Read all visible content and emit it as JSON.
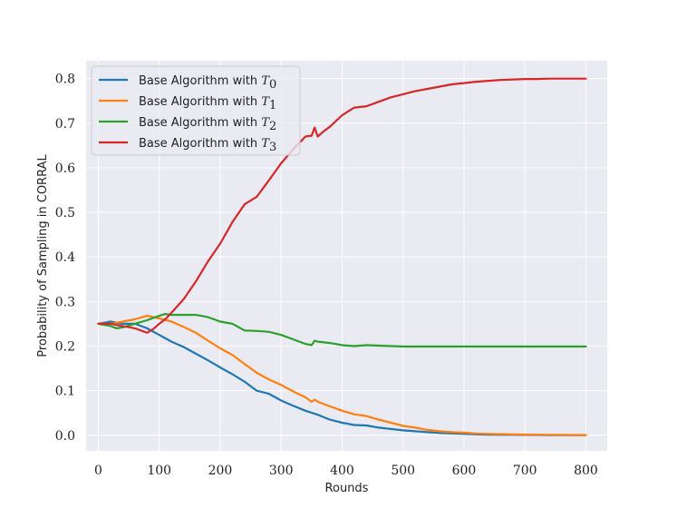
{
  "chart_data": {
    "type": "line",
    "title": "",
    "xlabel": "Rounds",
    "ylabel": "Probability of Sampling in CORRAL",
    "xlim": [
      -20,
      835
    ],
    "ylim": [
      -0.035,
      0.84
    ],
    "xticks": [
      0,
      100,
      200,
      300,
      400,
      500,
      600,
      700,
      800
    ],
    "yticks": [
      0.0,
      0.1,
      0.2,
      0.3,
      0.4,
      0.5,
      0.6,
      0.7,
      0.8
    ],
    "xtick_labels": [
      "0",
      "100",
      "200",
      "300",
      "400",
      "500",
      "600",
      "700",
      "800"
    ],
    "ytick_labels": [
      "0.0",
      "0.1",
      "0.2",
      "0.3",
      "0.4",
      "0.5",
      "0.6",
      "0.7",
      "0.8"
    ],
    "grid": true,
    "legend_position": "top-left",
    "legend_prefix": "Base Algorithm with",
    "series": [
      {
        "name": "T0",
        "symbol": "T",
        "subscript": "0",
        "color": "#1f77b4",
        "x": [
          0,
          20,
          40,
          60,
          80,
          100,
          120,
          140,
          160,
          180,
          200,
          220,
          240,
          260,
          280,
          300,
          320,
          340,
          360,
          380,
          400,
          420,
          440,
          460,
          480,
          500,
          520,
          540,
          560,
          580,
          600,
          620,
          640,
          660,
          680,
          700,
          720,
          740,
          760,
          780,
          800
        ],
        "y": [
          0.25,
          0.255,
          0.25,
          0.25,
          0.24,
          0.225,
          0.21,
          0.198,
          0.183,
          0.168,
          0.152,
          0.137,
          0.12,
          0.1,
          0.093,
          0.078,
          0.066,
          0.055,
          0.046,
          0.035,
          0.028,
          0.023,
          0.022,
          0.017,
          0.014,
          0.011,
          0.009,
          0.007,
          0.005,
          0.004,
          0.003,
          0.002,
          0.0015,
          0.001,
          0.001,
          0.0008,
          0.0006,
          0.0005,
          0.0004,
          0.0003,
          0.0002
        ]
      },
      {
        "name": "T1",
        "symbol": "T",
        "subscript": "1",
        "color": "#ff7f0e",
        "x": [
          0,
          20,
          40,
          60,
          80,
          100,
          120,
          140,
          160,
          180,
          200,
          220,
          240,
          260,
          280,
          300,
          320,
          340,
          350,
          355,
          360,
          380,
          400,
          420,
          440,
          460,
          480,
          500,
          520,
          540,
          560,
          580,
          600,
          620,
          640,
          660,
          680,
          700,
          720,
          740,
          760,
          780,
          800
        ],
        "y": [
          0.25,
          0.25,
          0.255,
          0.26,
          0.268,
          0.262,
          0.255,
          0.243,
          0.23,
          0.212,
          0.195,
          0.18,
          0.16,
          0.14,
          0.125,
          0.113,
          0.098,
          0.085,
          0.075,
          0.08,
          0.075,
          0.065,
          0.055,
          0.047,
          0.043,
          0.035,
          0.028,
          0.021,
          0.017,
          0.012,
          0.009,
          0.007,
          0.006,
          0.004,
          0.003,
          0.0025,
          0.002,
          0.0015,
          0.001,
          0.001,
          0.0008,
          0.0006,
          0.0005
        ]
      },
      {
        "name": "T2",
        "symbol": "T",
        "subscript": "2",
        "color": "#2ca02c",
        "x": [
          0,
          20,
          30,
          40,
          60,
          80,
          100,
          110,
          120,
          140,
          160,
          180,
          200,
          220,
          240,
          260,
          280,
          300,
          320,
          340,
          350,
          355,
          360,
          380,
          400,
          420,
          440,
          460,
          480,
          500,
          520,
          540,
          560,
          580,
          600,
          620,
          640,
          660,
          680,
          700,
          720,
          740,
          760,
          780,
          800
        ],
        "y": [
          0.25,
          0.245,
          0.24,
          0.242,
          0.25,
          0.258,
          0.268,
          0.272,
          0.27,
          0.27,
          0.27,
          0.265,
          0.255,
          0.25,
          0.235,
          0.234,
          0.232,
          0.225,
          0.215,
          0.205,
          0.202,
          0.212,
          0.21,
          0.207,
          0.202,
          0.2,
          0.202,
          0.201,
          0.2,
          0.199,
          0.199,
          0.199,
          0.199,
          0.199,
          0.199,
          0.199,
          0.199,
          0.199,
          0.199,
          0.199,
          0.199,
          0.199,
          0.199,
          0.199,
          0.199
        ]
      },
      {
        "name": "T3",
        "symbol": "T",
        "subscript": "3",
        "color": "#d62728",
        "x": [
          0,
          20,
          40,
          60,
          70,
          80,
          90,
          100,
          110,
          120,
          140,
          160,
          180,
          200,
          220,
          240,
          260,
          280,
          300,
          320,
          340,
          350,
          355,
          360,
          370,
          380,
          400,
          420,
          440,
          460,
          480,
          500,
          520,
          540,
          560,
          580,
          600,
          620,
          640,
          660,
          680,
          700,
          720,
          740,
          760,
          780,
          800
        ],
        "y": [
          0.25,
          0.25,
          0.245,
          0.24,
          0.235,
          0.23,
          0.238,
          0.25,
          0.26,
          0.275,
          0.305,
          0.345,
          0.39,
          0.43,
          0.478,
          0.518,
          0.535,
          0.572,
          0.61,
          0.642,
          0.67,
          0.672,
          0.69,
          0.67,
          0.682,
          0.692,
          0.718,
          0.735,
          0.738,
          0.748,
          0.758,
          0.765,
          0.772,
          0.777,
          0.782,
          0.787,
          0.79,
          0.793,
          0.795,
          0.797,
          0.798,
          0.799,
          0.799,
          0.8,
          0.8,
          0.8,
          0.8
        ]
      }
    ]
  }
}
